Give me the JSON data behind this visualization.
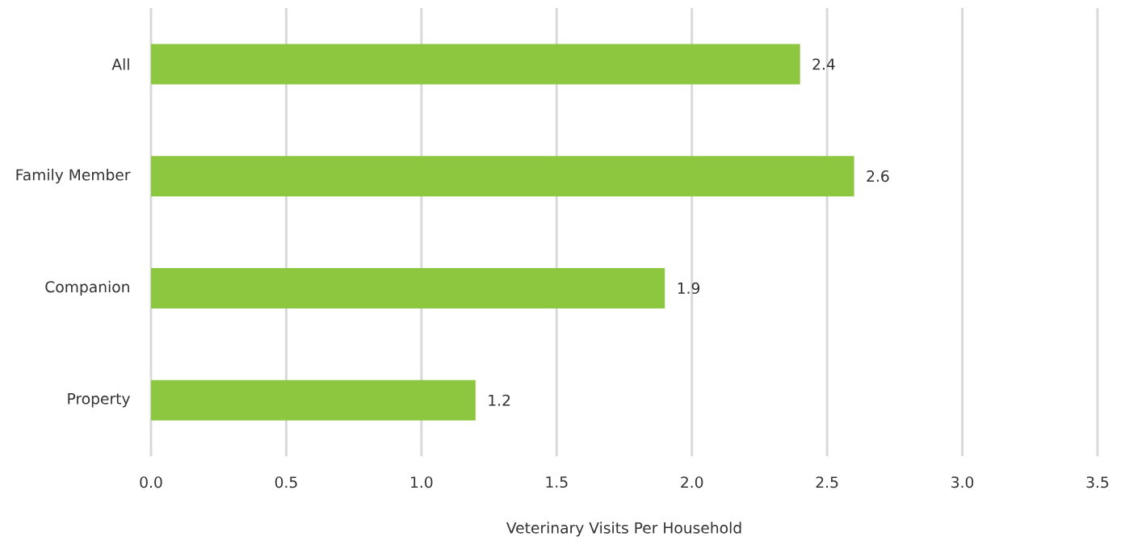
{
  "chart_data": {
    "type": "bar",
    "orientation": "horizontal",
    "xlabel": "Veterinary Visits Per Household",
    "categories": [
      "All",
      "Family Member",
      "Companion",
      "Property"
    ],
    "values": [
      2.4,
      2.6,
      1.9,
      1.2
    ],
    "color": "#8dc63f",
    "data_labels": true,
    "xlim": [
      0,
      3.5
    ],
    "xticks": [
      {
        "value": 0,
        "label": "0.0"
      },
      {
        "value": 0.5,
        "label": "0.5"
      },
      {
        "value": 1,
        "label": "1.0"
      },
      {
        "value": 1.5,
        "label": "1.5"
      },
      {
        "value": 2,
        "label": "2.0"
      },
      {
        "value": 2.5,
        "label": "2.5"
      },
      {
        "value": 3,
        "label": "3.0"
      },
      {
        "value": 3.5,
        "label": "3.5"
      }
    ],
    "grid": "x"
  }
}
